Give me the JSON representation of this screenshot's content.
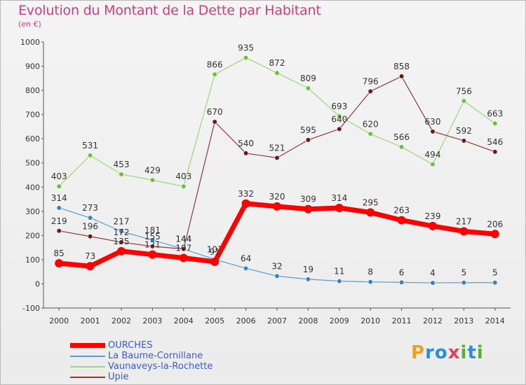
{
  "title": "Evolution du Montant de la Dette par Habitant",
  "subtitle": "(en €)",
  "brand": {
    "letters": [
      "P",
      "r",
      "o",
      "x",
      "i",
      "t",
      "i"
    ],
    "colors": [
      "#f0a020",
      "#2a8fd8",
      "#2a8fd8",
      "#e04060",
      "#58b030",
      "#2a8fd8",
      "#58b030"
    ]
  },
  "chart_data": {
    "type": "line",
    "x": [
      "2000",
      "2001",
      "2002",
      "2003",
      "2004",
      "2005",
      "2006",
      "2007",
      "2008",
      "2009",
      "2010",
      "2011",
      "2012",
      "2013",
      "2014"
    ],
    "ylim": [
      -100,
      1000
    ],
    "yticks": [
      "-100",
      "0",
      "100",
      "200",
      "300",
      "400",
      "500",
      "600",
      "700",
      "800",
      "900",
      "1000"
    ],
    "grid": false,
    "legend_position": "bottom-left",
    "series": [
      {
        "name": "La Baume-Cornillane",
        "color": "#5b9bd5",
        "marker": "#3a80c8",
        "values": [
          314,
          273,
          217,
          181,
          144,
          101,
          64,
          32,
          19,
          11,
          8,
          6,
          4,
          5,
          5
        ],
        "labels": [
          "314",
          "273",
          "217",
          "181",
          "144",
          "101",
          "64",
          "32",
          "19",
          "11",
          "8",
          "6",
          "4",
          "5",
          "5"
        ]
      },
      {
        "name": "Vaunaveys-la-Rochette",
        "color": "#9cd67a",
        "marker": "#6ac13a",
        "values": [
          403,
          531,
          453,
          429,
          403,
          866,
          935,
          872,
          809,
          693,
          620,
          566,
          494,
          756,
          663
        ],
        "labels": [
          "403",
          "531",
          "453",
          "429",
          "403",
          "866",
          "935",
          "872",
          "809",
          "693",
          "620",
          "566",
          "494",
          "756",
          "663"
        ]
      },
      {
        "name": "Upie",
        "color": "#8b3a3a",
        "marker": "#6a1818",
        "values": [
          219,
          196,
          172,
          155,
          144,
          670,
          540,
          521,
          595,
          640,
          796,
          858,
          630,
          592,
          546
        ],
        "labels": [
          "219",
          "196",
          "172",
          "155",
          "144",
          "670",
          "540",
          "521",
          "595",
          "640",
          "796",
          "858",
          "630",
          "592",
          "546"
        ]
      },
      {
        "name": "OURCHES",
        "color": "#ff0000",
        "marker": "#ff0000",
        "width": 7,
        "values": [
          85,
          73,
          135,
          121,
          107,
          91,
          332,
          320,
          309,
          314,
          295,
          263,
          239,
          217,
          206
        ],
        "labels": [
          "85",
          "73",
          "135",
          "121",
          "107",
          "91",
          "332",
          "320",
          "309",
          "314",
          "295",
          "263",
          "239",
          "217",
          "206"
        ]
      }
    ],
    "legend": [
      "OURCHES",
      "La Baume-Cornillane",
      "Vaunaveys-la-Rochette",
      "Upie"
    ]
  }
}
